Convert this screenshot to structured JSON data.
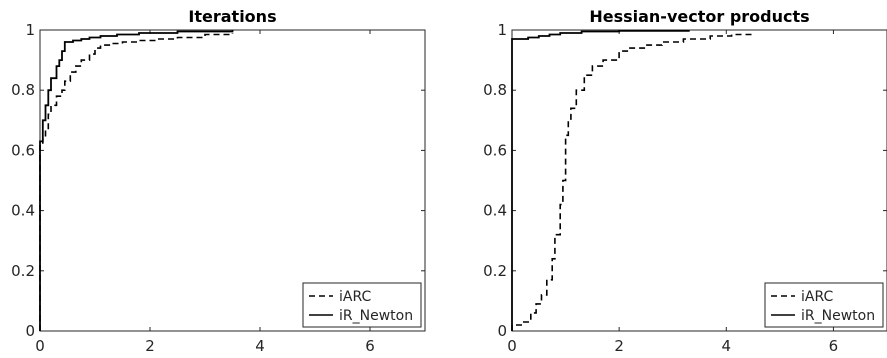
{
  "chart_data": [
    {
      "type": "line",
      "title": "Iterations",
      "xlabel": "",
      "ylabel": "",
      "xlim": [
        0,
        7
      ],
      "ylim": [
        0,
        1
      ],
      "xticks": [
        "0",
        "2",
        "4",
        "6"
      ],
      "yticks": [
        "0",
        "0.2",
        "0.4",
        "0.6",
        "0.8",
        "1"
      ],
      "grid": false,
      "legend_position": "bottom-right",
      "series": [
        {
          "name": "iARC",
          "style": "dashed",
          "color": "#000000",
          "points": [
            [
              0,
              0.62
            ],
            [
              0.05,
              0.64
            ],
            [
              0.1,
              0.67
            ],
            [
              0.15,
              0.72
            ],
            [
              0.2,
              0.75
            ],
            [
              0.3,
              0.78
            ],
            [
              0.4,
              0.8
            ],
            [
              0.45,
              0.83
            ],
            [
              0.55,
              0.86
            ],
            [
              0.65,
              0.88
            ],
            [
              0.75,
              0.9
            ],
            [
              0.9,
              0.92
            ],
            [
              1.0,
              0.94
            ],
            [
              1.1,
              0.95
            ],
            [
              1.3,
              0.955
            ],
            [
              1.5,
              0.96
            ],
            [
              1.8,
              0.965
            ],
            [
              2.1,
              0.97
            ],
            [
              2.5,
              0.975
            ],
            [
              3.0,
              0.985
            ],
            [
              3.5,
              0.99
            ]
          ]
        },
        {
          "name": "iR_Newton",
          "style": "solid",
          "color": "#000000",
          "points": [
            [
              0,
              0.63
            ],
            [
              0.05,
              0.7
            ],
            [
              0.1,
              0.75
            ],
            [
              0.15,
              0.8
            ],
            [
              0.2,
              0.84
            ],
            [
              0.3,
              0.88
            ],
            [
              0.35,
              0.9
            ],
            [
              0.4,
              0.93
            ],
            [
              0.45,
              0.96
            ],
            [
              0.6,
              0.965
            ],
            [
              0.75,
              0.97
            ],
            [
              0.9,
              0.975
            ],
            [
              1.1,
              0.98
            ],
            [
              1.4,
              0.985
            ],
            [
              1.8,
              0.99
            ],
            [
              2.5,
              0.995
            ],
            [
              3.5,
              1.0
            ]
          ]
        }
      ]
    },
    {
      "type": "line",
      "title": "Hessian-vector products",
      "xlabel": "",
      "ylabel": "",
      "xlim": [
        0,
        7
      ],
      "ylim": [
        0,
        1
      ],
      "xticks": [
        "0",
        "2",
        "4",
        "6"
      ],
      "yticks": [
        "0",
        "0.2",
        "0.4",
        "0.6",
        "0.8",
        "1"
      ],
      "grid": false,
      "legend_position": "bottom-right",
      "series": [
        {
          "name": "iARC",
          "style": "dashed",
          "color": "#000000",
          "points": [
            [
              0.05,
              0.02
            ],
            [
              0.2,
              0.03
            ],
            [
              0.35,
              0.06
            ],
            [
              0.45,
              0.09
            ],
            [
              0.55,
              0.12
            ],
            [
              0.65,
              0.17
            ],
            [
              0.75,
              0.24
            ],
            [
              0.8,
              0.32
            ],
            [
              0.9,
              0.42
            ],
            [
              0.95,
              0.5
            ],
            [
              1.0,
              0.65
            ],
            [
              1.05,
              0.7
            ],
            [
              1.1,
              0.74
            ],
            [
              1.2,
              0.8
            ],
            [
              1.35,
              0.85
            ],
            [
              1.5,
              0.88
            ],
            [
              1.7,
              0.9
            ],
            [
              2.0,
              0.93
            ],
            [
              2.2,
              0.94
            ],
            [
              2.5,
              0.95
            ],
            [
              2.8,
              0.96
            ],
            [
              3.2,
              0.97
            ],
            [
              3.7,
              0.98
            ],
            [
              4.1,
              0.985
            ],
            [
              4.5,
              0.99
            ]
          ]
        },
        {
          "name": "iR_Newton",
          "style": "solid",
          "color": "#000000",
          "points": [
            [
              0,
              0.97
            ],
            [
              0.3,
              0.975
            ],
            [
              0.5,
              0.98
            ],
            [
              0.7,
              0.985
            ],
            [
              0.9,
              0.99
            ],
            [
              1.3,
              0.995
            ],
            [
              2.0,
              0.997
            ],
            [
              3.3,
              1.0
            ]
          ]
        }
      ]
    }
  ]
}
